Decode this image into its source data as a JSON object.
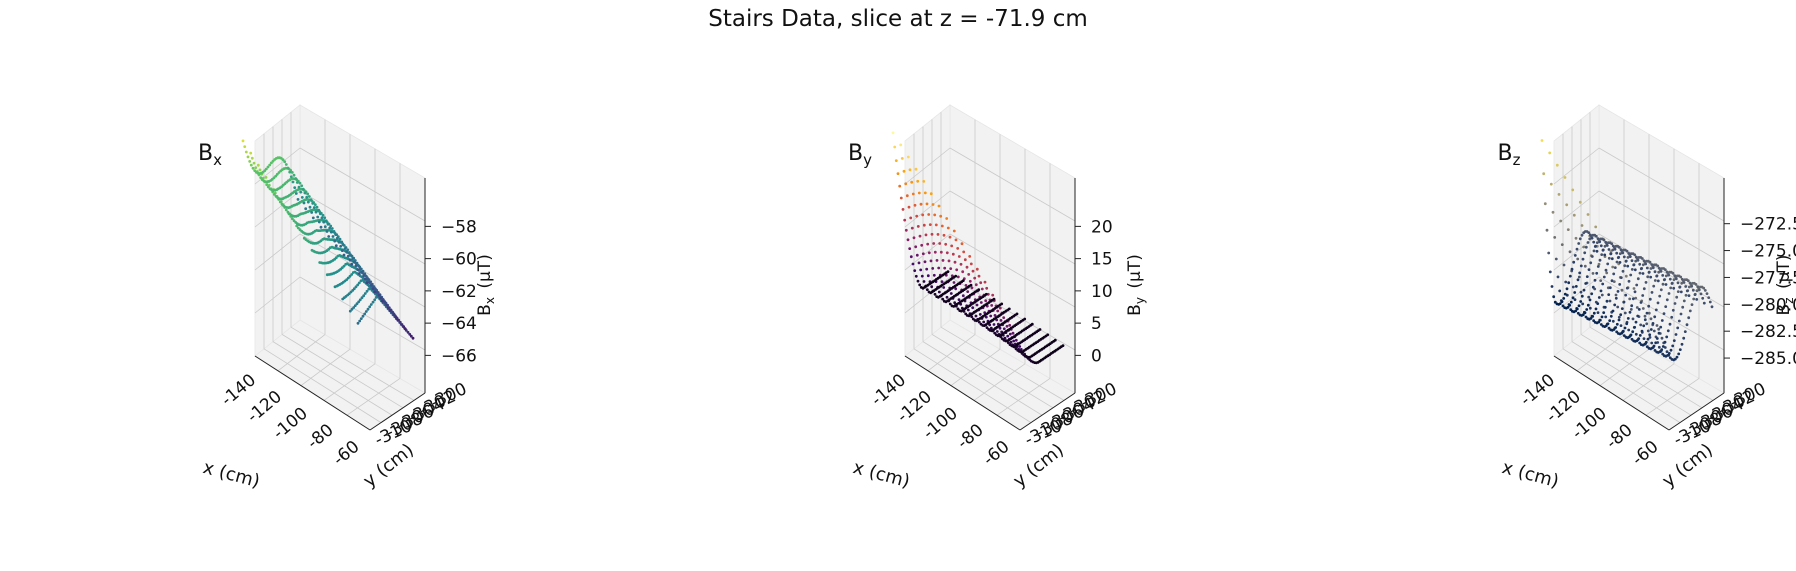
{
  "suptitle": "Stairs Data, slice at z = -71.9 cm",
  "chart_data": [
    {
      "type": "scatter3d",
      "title_main": "B",
      "title_sub": "x",
      "xlabel": "x (cm)",
      "ylabel": "y (cm)",
      "zlabel_main": "B",
      "zlabel_sub": "x",
      "zlabel_unit": "(μT)",
      "xticks": [
        "-140",
        "-120",
        "-100",
        "-80",
        "-60"
      ],
      "yticks": [
        "-310",
        "-308",
        "-306",
        "-304",
        "-302",
        "-300"
      ],
      "zticks": [
        "−66",
        "−64",
        "−62",
        "−60",
        "−58"
      ],
      "xlim": [
        -145,
        -55
      ],
      "ylim": [
        -311,
        -299
      ],
      "zlim": [
        -67.5,
        -57
      ],
      "colormap": "viridis",
      "colors": [
        "#440154",
        "#3b528b",
        "#21908c",
        "#5dc863",
        "#fde725"
      ],
      "surface": "bx"
    },
    {
      "type": "scatter3d",
      "title_main": "B",
      "title_sub": "y",
      "xlabel": "x (cm)",
      "ylabel": "y (cm)",
      "zlabel_main": "B",
      "zlabel_sub": "y",
      "zlabel_unit": "(μT)",
      "xticks": [
        "-140",
        "-120",
        "-100",
        "-80",
        "-60"
      ],
      "yticks": [
        "-310",
        "-308",
        "-306",
        "-304",
        "-302",
        "-300"
      ],
      "zticks": [
        "0",
        "5",
        "10",
        "15",
        "20"
      ],
      "xlim": [
        -145,
        -55
      ],
      "ylim": [
        -311,
        -299
      ],
      "zlim": [
        -1,
        23
      ],
      "colormap": "inferno",
      "colors": [
        "#000004",
        "#420a68",
        "#932667",
        "#dd513a",
        "#fca50a",
        "#fcffa4"
      ],
      "surface": "by"
    },
    {
      "type": "scatter3d",
      "title_main": "B",
      "title_sub": "z",
      "xlabel": "x (cm)",
      "ylabel": "y (cm)",
      "zlabel_main": "B",
      "zlabel_sub": "z",
      "zlabel_unit": "(μT)",
      "xticks": [
        "-140",
        "-120",
        "-100",
        "-80",
        "-60"
      ],
      "yticks": [
        "-310",
        "-308",
        "-306",
        "-304",
        "-302",
        "-300"
      ],
      "zticks": [
        "−285.0",
        "−282.5",
        "−280.0",
        "−277.5",
        "−275.0",
        "−272.5"
      ],
      "xlim": [
        -145,
        -55
      ],
      "ylim": [
        -311,
        -299
      ],
      "zlim": [
        -286,
        -271
      ],
      "colormap": "cividis",
      "colors": [
        "#00204d",
        "#31446b",
        "#666970",
        "#958f78",
        "#cbba69",
        "#ffea46"
      ],
      "surface": "bz"
    }
  ]
}
